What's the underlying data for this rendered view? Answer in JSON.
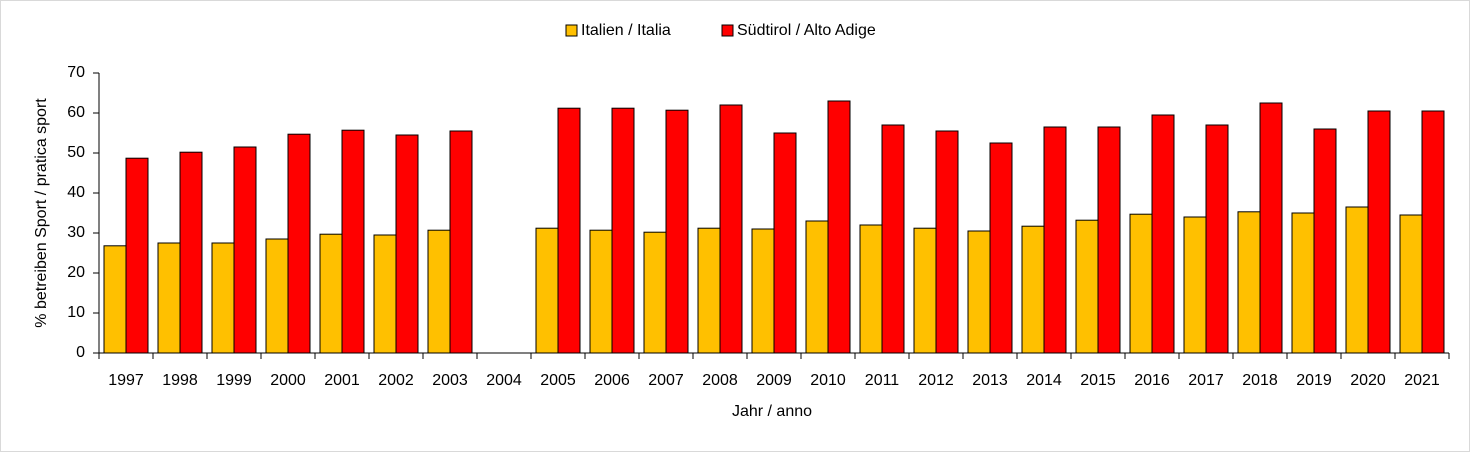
{
  "chart_data": {
    "type": "bar",
    "x_label": "Jahr / anno",
    "y_label": "% betreiben Sport / pratica sport",
    "categories": [
      "1997",
      "1998",
      "1999",
      "2000",
      "2001",
      "2002",
      "2003",
      "2004",
      "2005",
      "2006",
      "2007",
      "2008",
      "2009",
      "2010",
      "2011",
      "2012",
      "2013",
      "2014",
      "2015",
      "2016",
      "2017",
      "2018",
      "2019",
      "2020",
      "2021"
    ],
    "series": [
      {
        "name": "Italien / Italia",
        "color": "#ffc000",
        "values": [
          26.8,
          27.5,
          27.5,
          28.5,
          29.7,
          29.5,
          30.7,
          null,
          31.2,
          30.7,
          30.2,
          31.2,
          31,
          33,
          32,
          31.2,
          30.5,
          31.7,
          33.2,
          34.7,
          34,
          35.3,
          35,
          36.5,
          34.5
        ]
      },
      {
        "name": "Südtirol / Alto Adige",
        "color": "#ff0000",
        "values": [
          48.7,
          50.2,
          51.5,
          54.7,
          55.7,
          54.5,
          55.5,
          null,
          61.2,
          61.2,
          60.7,
          62,
          55,
          63,
          57,
          55.5,
          52.5,
          56.5,
          56.5,
          59.5,
          57,
          62.5,
          56,
          60.5,
          60.5
        ]
      }
    ],
    "ylim": [
      0,
      70
    ],
    "yticks": [
      0,
      10,
      20,
      30,
      40,
      50,
      60,
      70
    ],
    "legend": "top"
  }
}
